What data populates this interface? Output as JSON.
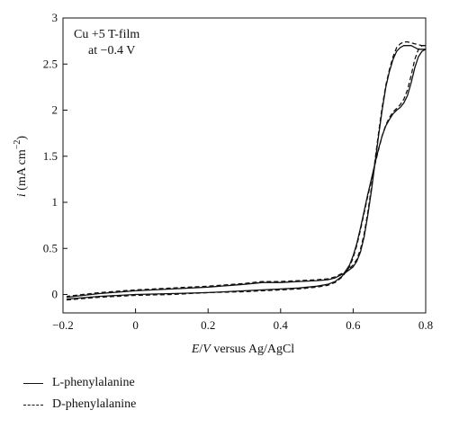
{
  "chart_data": {
    "type": "line",
    "annotation": [
      "Cu +5 T-film",
      "at −0.4 V"
    ],
    "xlabel_parts": [
      "E",
      "/",
      "V",
      " versus Ag/AgCl"
    ],
    "ylabel_parts": [
      "i",
      " (mA cm",
      "−2",
      ")"
    ],
    "xlim": [
      -0.2,
      0.8
    ],
    "ylim": [
      -0.2,
      3.0
    ],
    "x_ticks": [
      -0.2,
      0,
      0.2,
      0.4,
      0.6,
      0.8
    ],
    "x_tick_labels": [
      "−0.2",
      "0",
      "0.2",
      "0.4",
      "0.6",
      "0.8"
    ],
    "y_ticks": [
      0,
      0.5,
      1,
      1.5,
      2,
      2.5,
      3
    ],
    "y_tick_labels": [
      "0",
      "0.5",
      "1",
      "1.5",
      "2",
      "2.5",
      "3"
    ],
    "grid": false,
    "legend_position": "below",
    "series": [
      {
        "name": "L-phenylalanine",
        "style": "solid",
        "color": "#111111",
        "x": [
          -0.19,
          -0.1,
          0.0,
          0.1,
          0.2,
          0.3,
          0.35,
          0.4,
          0.45,
          0.5,
          0.53,
          0.55,
          0.57,
          0.59,
          0.6,
          0.61,
          0.62,
          0.63,
          0.64,
          0.65,
          0.66,
          0.67,
          0.68,
          0.69,
          0.7,
          0.71,
          0.72,
          0.73,
          0.74,
          0.75,
          0.76,
          0.77,
          0.78,
          0.79,
          0.8,
          0.79,
          0.78,
          0.77,
          0.76,
          0.75,
          0.74,
          0.73,
          0.72,
          0.71,
          0.7,
          0.69,
          0.68,
          0.67,
          0.66,
          0.65,
          0.64,
          0.63,
          0.62,
          0.61,
          0.6,
          0.59,
          0.58,
          0.57,
          0.56,
          0.55,
          0.53,
          0.5,
          0.45,
          0.4,
          0.35,
          0.3,
          0.2,
          0.1,
          0.0,
          -0.1,
          -0.19
        ],
        "y": [
          -0.05,
          -0.02,
          0.0,
          0.01,
          0.02,
          0.04,
          0.05,
          0.06,
          0.07,
          0.09,
          0.11,
          0.14,
          0.2,
          0.32,
          0.42,
          0.55,
          0.72,
          0.9,
          1.08,
          1.25,
          1.42,
          1.58,
          1.72,
          1.83,
          1.9,
          1.96,
          2.0,
          2.03,
          2.08,
          2.16,
          2.3,
          2.46,
          2.58,
          2.64,
          2.66,
          2.66,
          2.66,
          2.68,
          2.7,
          2.7,
          2.7,
          2.68,
          2.64,
          2.55,
          2.42,
          2.25,
          2.0,
          1.72,
          1.42,
          1.12,
          0.85,
          0.62,
          0.46,
          0.36,
          0.3,
          0.27,
          0.24,
          0.22,
          0.2,
          0.18,
          0.16,
          0.15,
          0.14,
          0.13,
          0.13,
          0.11,
          0.08,
          0.06,
          0.04,
          0.01,
          -0.03
        ]
      },
      {
        "name": "D-phenylalanine",
        "style": "dashed",
        "color": "#111111",
        "x": [
          -0.19,
          -0.1,
          0.0,
          0.1,
          0.2,
          0.3,
          0.35,
          0.4,
          0.45,
          0.5,
          0.53,
          0.55,
          0.57,
          0.59,
          0.6,
          0.61,
          0.62,
          0.63,
          0.64,
          0.65,
          0.66,
          0.67,
          0.68,
          0.69,
          0.7,
          0.71,
          0.72,
          0.73,
          0.74,
          0.75,
          0.76,
          0.77,
          0.78,
          0.79,
          0.8,
          0.79,
          0.78,
          0.77,
          0.76,
          0.75,
          0.74,
          0.73,
          0.72,
          0.71,
          0.7,
          0.69,
          0.68,
          0.67,
          0.66,
          0.65,
          0.64,
          0.63,
          0.62,
          0.61,
          0.6,
          0.59,
          0.58,
          0.57,
          0.56,
          0.55,
          0.53,
          0.5,
          0.45,
          0.4,
          0.35,
          0.3,
          0.2,
          0.1,
          0.0,
          -0.1,
          -0.19
        ],
        "y": [
          -0.06,
          -0.03,
          -0.01,
          0.0,
          0.02,
          0.03,
          0.04,
          0.05,
          0.06,
          0.08,
          0.1,
          0.13,
          0.19,
          0.3,
          0.4,
          0.53,
          0.7,
          0.88,
          1.06,
          1.24,
          1.41,
          1.57,
          1.72,
          1.84,
          1.92,
          1.98,
          2.02,
          2.06,
          2.12,
          2.22,
          2.38,
          2.55,
          2.66,
          2.7,
          2.7,
          2.7,
          2.71,
          2.72,
          2.73,
          2.74,
          2.74,
          2.72,
          2.68,
          2.58,
          2.44,
          2.27,
          2.03,
          1.75,
          1.45,
          1.15,
          0.88,
          0.65,
          0.49,
          0.38,
          0.32,
          0.28,
          0.25,
          0.23,
          0.21,
          0.19,
          0.17,
          0.16,
          0.15,
          0.14,
          0.14,
          0.12,
          0.09,
          0.07,
          0.05,
          0.02,
          -0.02
        ]
      }
    ]
  }
}
